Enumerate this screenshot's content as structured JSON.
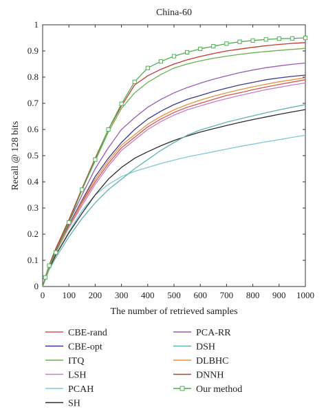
{
  "chart_data": {
    "type": "line",
    "title": "China-60",
    "xlabel": "The number of retrieved samples",
    "ylabel": "Recall @ 128 bits",
    "xlim": [
      0,
      1000
    ],
    "ylim": [
      0,
      1
    ],
    "xticks": [
      0,
      100,
      200,
      300,
      400,
      500,
      600,
      700,
      800,
      900,
      1000
    ],
    "yticks": [
      0,
      0.1,
      0.2,
      0.3,
      0.4,
      0.5,
      0.6,
      0.7,
      0.8,
      0.9,
      1
    ],
    "ytick_labels": [
      "0",
      "0.1",
      "0.2",
      "0.3",
      "0.4",
      "0.5",
      "0.6",
      "0.7",
      "0.8",
      "0.9",
      "1"
    ],
    "grid": false,
    "legend_position": "below",
    "x": [
      0,
      10,
      25,
      50,
      100,
      150,
      200,
      250,
      300,
      350,
      400,
      450,
      500,
      550,
      600,
      650,
      700,
      750,
      800,
      850,
      900,
      950,
      1000
    ],
    "series": [
      {
        "name": "CBE-rand",
        "color": "#d9534f",
        "values": [
          0,
          0.03,
          0.075,
          0.13,
          0.23,
          0.32,
          0.4,
          0.47,
          0.53,
          0.57,
          0.61,
          0.64,
          0.665,
          0.685,
          0.7,
          0.715,
          0.73,
          0.74,
          0.752,
          0.762,
          0.772,
          0.781,
          0.79
        ]
      },
      {
        "name": "CBE-opt",
        "color": "#3a3a8f",
        "values": [
          0,
          0.03,
          0.075,
          0.13,
          0.235,
          0.33,
          0.42,
          0.49,
          0.55,
          0.6,
          0.64,
          0.67,
          0.695,
          0.715,
          0.73,
          0.745,
          0.758,
          0.77,
          0.78,
          0.79,
          0.797,
          0.803,
          0.808
        ]
      },
      {
        "name": "ITQ",
        "color": "#6ab04c",
        "values": [
          0,
          0.035,
          0.08,
          0.14,
          0.25,
          0.37,
          0.48,
          0.59,
          0.68,
          0.74,
          0.78,
          0.81,
          0.835,
          0.85,
          0.862,
          0.872,
          0.88,
          0.887,
          0.893,
          0.898,
          0.902,
          0.906,
          0.91
        ]
      },
      {
        "name": "LSH",
        "color": "#c77dc9",
        "values": [
          0,
          0.03,
          0.075,
          0.13,
          0.225,
          0.31,
          0.39,
          0.46,
          0.52,
          0.56,
          0.6,
          0.63,
          0.655,
          0.675,
          0.69,
          0.705,
          0.718,
          0.73,
          0.741,
          0.752,
          0.761,
          0.77,
          0.778
        ]
      },
      {
        "name": "PCAH",
        "color": "#7ec8d8",
        "values": [
          0,
          0.03,
          0.07,
          0.12,
          0.21,
          0.29,
          0.35,
          0.39,
          0.42,
          0.44,
          0.455,
          0.47,
          0.483,
          0.495,
          0.505,
          0.515,
          0.525,
          0.535,
          0.544,
          0.553,
          0.561,
          0.57,
          0.578
        ]
      },
      {
        "name": "SH",
        "color": "#2b2b2b",
        "values": [
          0,
          0.03,
          0.07,
          0.12,
          0.205,
          0.28,
          0.35,
          0.41,
          0.455,
          0.49,
          0.515,
          0.538,
          0.558,
          0.575,
          0.59,
          0.603,
          0.615,
          0.627,
          0.638,
          0.648,
          0.658,
          0.667,
          0.676
        ]
      },
      {
        "name": "PCA-RR",
        "color": "#9b59b6",
        "values": [
          0,
          0.03,
          0.078,
          0.135,
          0.245,
          0.35,
          0.45,
          0.53,
          0.6,
          0.645,
          0.685,
          0.715,
          0.74,
          0.76,
          0.777,
          0.792,
          0.805,
          0.817,
          0.827,
          0.836,
          0.843,
          0.849,
          0.854
        ]
      },
      {
        "name": "DSH",
        "color": "#5fb3b3",
        "values": [
          0,
          0.025,
          0.065,
          0.11,
          0.19,
          0.26,
          0.32,
          0.37,
          0.41,
          0.45,
          0.485,
          0.52,
          0.55,
          0.578,
          0.598,
          0.613,
          0.628,
          0.64,
          0.652,
          0.664,
          0.675,
          0.685,
          0.695
        ]
      },
      {
        "name": "DLBHC",
        "color": "#e8913a",
        "values": [
          0,
          0.03,
          0.075,
          0.13,
          0.23,
          0.325,
          0.41,
          0.48,
          0.54,
          0.58,
          0.62,
          0.65,
          0.675,
          0.695,
          0.712,
          0.727,
          0.74,
          0.752,
          0.763,
          0.773,
          0.782,
          0.79,
          0.798
        ]
      },
      {
        "name": "DNNH",
        "color": "#c0392b",
        "values": [
          0,
          0.035,
          0.082,
          0.145,
          0.255,
          0.375,
          0.49,
          0.6,
          0.69,
          0.77,
          0.805,
          0.83,
          0.85,
          0.866,
          0.879,
          0.89,
          0.9,
          0.907,
          0.914,
          0.92,
          0.925,
          0.929,
          0.932
        ]
      },
      {
        "name": "Our method",
        "color": "#4caf50",
        "marker": "square",
        "values": [
          0,
          0.035,
          0.08,
          0.13,
          0.245,
          0.37,
          0.485,
          0.6,
          0.698,
          0.782,
          0.835,
          0.86,
          0.88,
          0.895,
          0.908,
          0.918,
          0.928,
          0.935,
          0.94,
          0.944,
          0.947,
          0.948,
          0.95
        ]
      }
    ]
  }
}
